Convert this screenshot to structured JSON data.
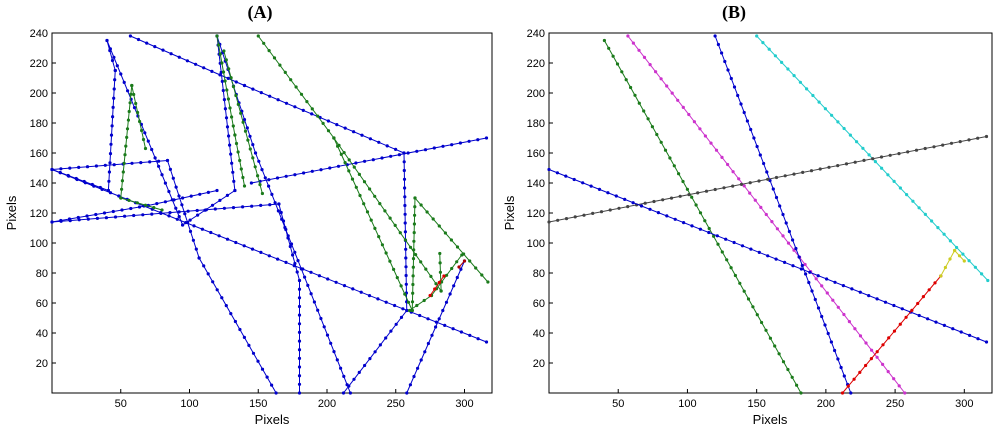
{
  "chart_data": [
    {
      "panel_label": "(A)",
      "type": "line",
      "xlabel": "Pixels",
      "ylabel": "Pixels",
      "xlim": [
        0,
        320
      ],
      "ylim": [
        0,
        240
      ],
      "xticks": [
        50,
        100,
        150,
        200,
        250,
        300
      ],
      "yticks": [
        20,
        40,
        60,
        80,
        100,
        120,
        140,
        160,
        180,
        200,
        220,
        240
      ],
      "grid": false,
      "series": [
        {
          "color": "#0000cc",
          "marker": "dot",
          "points": [
            [
              0,
              149
            ],
            [
              41,
              135
            ],
            [
              46,
              215
            ],
            [
              40,
              235
            ],
            [
              95,
              112
            ],
            [
              133,
              135
            ],
            [
              120,
              238
            ],
            [
              148,
              160
            ],
            [
              217,
              0
            ]
          ]
        },
        {
          "color": "#0000cc",
          "marker": "dot",
          "points": [
            [
              0,
              149
            ],
            [
              84,
              155
            ],
            [
              107,
              90
            ],
            [
              163,
              0
            ]
          ]
        },
        {
          "color": "#0000cc",
          "marker": "dot",
          "points": [
            [
              0,
              114
            ],
            [
              70,
              125
            ],
            [
              120,
              135
            ]
          ]
        },
        {
          "color": "#0000cc",
          "marker": "dot",
          "points": [
            [
              0,
              114
            ],
            [
              165,
              126
            ],
            [
              180,
              75
            ],
            [
              180,
              0
            ]
          ]
        },
        {
          "color": "#0000cc",
          "marker": "dot",
          "points": [
            [
              57,
              238
            ],
            [
              140,
              205
            ],
            [
              256,
              160
            ],
            [
              258,
              55
            ]
          ]
        },
        {
          "color": "#0000cc",
          "marker": "dot",
          "points": [
            [
              145,
              140
            ],
            [
              316,
              170
            ]
          ]
        },
        {
          "color": "#0000cc",
          "marker": "dot",
          "points": [
            [
              0,
              149
            ],
            [
              316,
              34
            ]
          ]
        },
        {
          "color": "#0000cc",
          "marker": "dot",
          "points": [
            [
              212,
              0
            ],
            [
              258,
              55
            ]
          ]
        },
        {
          "color": "#0000cc",
          "marker": "dot",
          "points": [
            [
              258,
              0
            ],
            [
              300,
              88
            ]
          ]
        },
        {
          "color": "#1a7a1a",
          "marker": "dot",
          "points": [
            [
              58,
              205
            ],
            [
              50,
              130
            ],
            [
              80,
              122
            ]
          ]
        },
        {
          "color": "#1a7a1a",
          "marker": "dot",
          "points": [
            [
              58,
              205
            ],
            [
              68,
              163
            ]
          ]
        },
        {
          "color": "#1a7a1a",
          "marker": "dot",
          "points": [
            [
              120,
              238
            ],
            [
              133,
              172
            ],
            [
              140,
              138
            ]
          ]
        },
        {
          "color": "#1a7a1a",
          "marker": "dot",
          "points": [
            [
              125,
              228
            ],
            [
              153,
              133
            ]
          ]
        },
        {
          "color": "#1a7a1a",
          "marker": "dot",
          "points": [
            [
              150,
              238
            ],
            [
              205,
              170
            ],
            [
              283,
              68
            ],
            [
              282,
              93
            ]
          ]
        },
        {
          "color": "#1a7a1a",
          "marker": "dot",
          "points": [
            [
              205,
              170
            ],
            [
              262,
              55
            ],
            [
              264,
              130
            ],
            [
              317,
              74
            ]
          ]
        },
        {
          "color": "#1a7a1a",
          "marker": "dot",
          "points": [
            [
              260,
              55
            ],
            [
              276,
              65
            ],
            [
              298,
              92
            ]
          ]
        },
        {
          "color": "#dd0000",
          "marker": "dot",
          "points": [
            [
              275,
              65
            ],
            [
              285,
              78
            ]
          ]
        },
        {
          "color": "#aa0000",
          "marker": "dot",
          "points": [
            [
              296,
              84
            ],
            [
              300,
              88
            ]
          ]
        }
      ]
    },
    {
      "panel_label": "(B)",
      "type": "line",
      "xlabel": "Pixels",
      "ylabel": "Pixels",
      "xlim": [
        0,
        320
      ],
      "ylim": [
        0,
        240
      ],
      "xticks": [
        50,
        100,
        150,
        200,
        250,
        300
      ],
      "yticks": [
        20,
        40,
        60,
        80,
        100,
        120,
        140,
        160,
        180,
        200,
        220,
        240
      ],
      "grid": false,
      "series": [
        {
          "color": "#1a7a1a",
          "marker": "dot",
          "points": [
            [
              40,
              235
            ],
            [
              182,
              0
            ]
          ]
        },
        {
          "color": "#cc33cc",
          "marker": "dot",
          "points": [
            [
              57,
              238
            ],
            [
              257,
              0
            ]
          ]
        },
        {
          "color": "#0000cc",
          "marker": "dot",
          "points": [
            [
              120,
              238
            ],
            [
              218,
              0
            ]
          ]
        },
        {
          "color": "#22cccc",
          "marker": "dot",
          "points": [
            [
              150,
              238
            ],
            [
              317,
              75
            ]
          ]
        },
        {
          "color": "#444444",
          "marker": "dot",
          "points": [
            [
              0,
              114
            ],
            [
              316,
              171
            ]
          ]
        },
        {
          "color": "#0000cc",
          "marker": "dot",
          "points": [
            [
              0,
              149
            ],
            [
              316,
              34
            ]
          ]
        },
        {
          "color": "#dd0000",
          "marker": "dot",
          "points": [
            [
              212,
              0
            ],
            [
              283,
              78
            ]
          ]
        },
        {
          "color": "#cccc22",
          "marker": "dot",
          "points": [
            [
              283,
              78
            ],
            [
              293,
              95
            ],
            [
              300,
              88
            ]
          ]
        }
      ]
    }
  ]
}
